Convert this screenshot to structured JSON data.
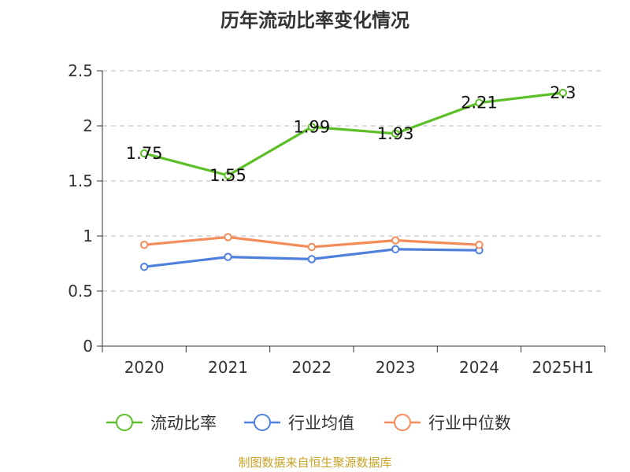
{
  "chart_data": {
    "type": "line",
    "title": "历年流动比率变化情况",
    "categories": [
      "2020",
      "2021",
      "2022",
      "2023",
      "2024",
      "2025H1"
    ],
    "yticks": [
      "0",
      "0.5",
      "1",
      "1.5",
      "2",
      "2.5"
    ],
    "ylim": [
      0,
      2.5
    ],
    "grid": true,
    "legend_position": "bottom",
    "series": [
      {
        "name": "流动比率",
        "color": "#5cbf27",
        "values": [
          1.75,
          1.55,
          1.99,
          1.93,
          2.21,
          2.3
        ],
        "labels": [
          "1.75",
          "1.55",
          "1.99",
          "1.93",
          "2.21",
          "2.3"
        ]
      },
      {
        "name": "行业均值",
        "color": "#4f7fdc",
        "values": [
          0.72,
          0.81,
          0.79,
          0.88,
          0.87,
          null
        ]
      },
      {
        "name": "行业中位数",
        "color": "#f48c5a",
        "values": [
          0.92,
          0.99,
          0.9,
          0.96,
          0.92,
          null
        ]
      }
    ]
  },
  "source_note": "制图数据来自恒生聚源数据库"
}
